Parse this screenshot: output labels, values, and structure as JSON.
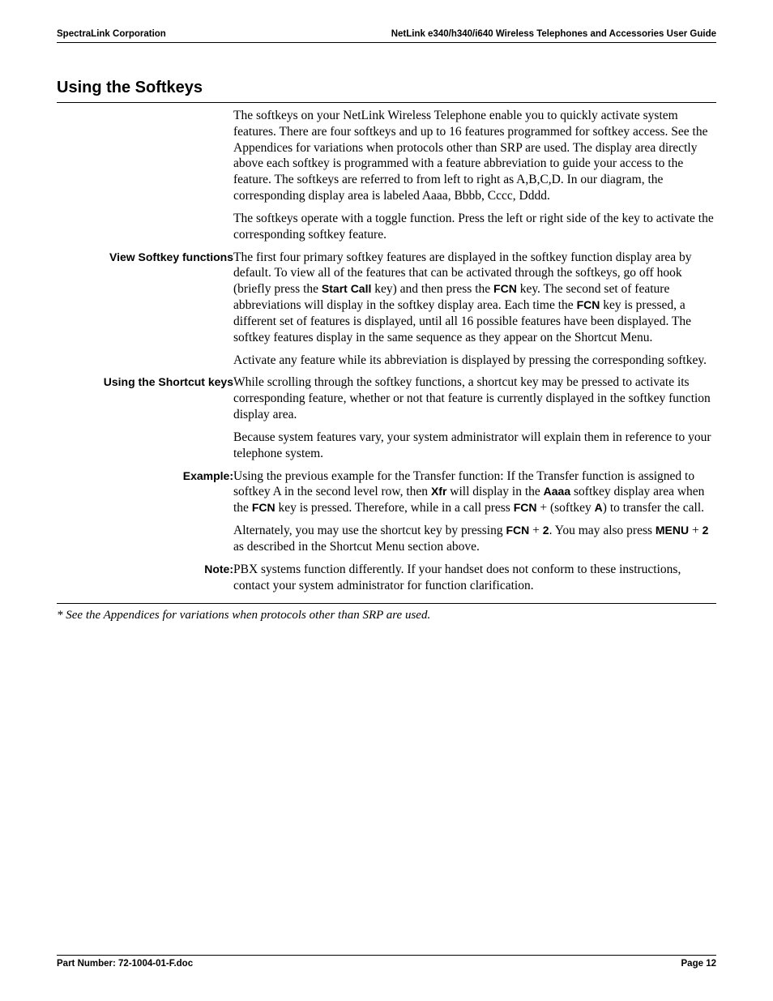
{
  "header": {
    "left": "SpectraLink Corporation",
    "right": "NetLink e340/h340/i640 Wireless Telephones and Accessories User Guide"
  },
  "section_title": "Using the Softkeys",
  "rows": [
    {
      "label": "",
      "paragraphs": [
        {
          "segments": [
            {
              "t": "The softkeys on your NetLink Wireless Telephone enable you to quickly activate system features. There are four softkeys and up to 16 features programmed for softkey access. See the Appendices for variations when protocols other than SRP are used. The display area directly above each softkey is programmed with a feature abbreviation to guide your access to the feature. The softkeys are referred to from left to right as A,B,C,D. In our diagram, the corresponding display area is labeled Aaaa, Bbbb, Cccc, Dddd."
            }
          ]
        },
        {
          "segments": [
            {
              "t": "The softkeys operate with a toggle function. Press the left or right side of the key to activate the corresponding softkey feature."
            }
          ]
        }
      ]
    },
    {
      "label": "View Softkey functions",
      "paragraphs": [
        {
          "segments": [
            {
              "t": "The first four primary softkey features are displayed in the softkey function display area by default. To view all of the features that can be activated through the softkeys, go off hook (briefly press the "
            },
            {
              "t": "Start Call",
              "b": true
            },
            {
              "t": " key) and then press the "
            },
            {
              "t": "FCN",
              "b": true
            },
            {
              "t": " key. The second set of feature abbreviations will display in the softkey display area. Each time the "
            },
            {
              "t": "FCN",
              "b": true
            },
            {
              "t": " key is pressed, a different set of features is displayed, until all 16 possible features have been displayed. The softkey features display in the same sequence as they appear on the Shortcut Menu."
            }
          ]
        },
        {
          "segments": [
            {
              "t": "Activate any feature while its abbreviation is displayed by pressing the corresponding softkey."
            }
          ]
        }
      ]
    },
    {
      "label": "Using the Shortcut keys",
      "paragraphs": [
        {
          "segments": [
            {
              "t": "While scrolling through the softkey functions, a shortcut key may be pressed to activate its corresponding feature, whether or not that feature is currently displayed in the softkey function display area."
            }
          ]
        },
        {
          "segments": [
            {
              "t": "Because system features vary, your system administrator will explain them in reference to your telephone system."
            }
          ]
        }
      ]
    },
    {
      "label": "Example:",
      "paragraphs": [
        {
          "segments": [
            {
              "t": "Using the previous example for the Transfer function: If the Transfer function is assigned to softkey A in the second level row, then "
            },
            {
              "t": "Xfr",
              "b": true
            },
            {
              "t": " will display in the "
            },
            {
              "t": "Aaaa",
              "b": true
            },
            {
              "t": " softkey display area when the "
            },
            {
              "t": "FCN",
              "b": true
            },
            {
              "t": " key is pressed. Therefore, while in a call press "
            },
            {
              "t": "FCN",
              "b": true
            },
            {
              "t": " + (softkey "
            },
            {
              "t": "A",
              "b": true
            },
            {
              "t": ") to transfer the call."
            }
          ]
        },
        {
          "segments": [
            {
              "t": "Alternately, you may use the shortcut key by pressing "
            },
            {
              "t": "FCN",
              "b": true
            },
            {
              "t": " + "
            },
            {
              "t": "2",
              "b": true
            },
            {
              "t": ". You may also press "
            },
            {
              "t": "MENU",
              "b": true
            },
            {
              "t": " + "
            },
            {
              "t": "2",
              "b": true
            },
            {
              "t": " as described in the Shortcut Menu section above."
            }
          ]
        }
      ]
    },
    {
      "label": "Note:",
      "paragraphs": [
        {
          "segments": [
            {
              "t": "PBX systems function differently. If your handset does not conform to these instructions, contact your system administrator for function clarification."
            }
          ]
        }
      ]
    }
  ],
  "footnote": "* See the Appendices for variations when protocols other than SRP are used.",
  "footer": {
    "left": "Part Number: 72-1004-01-F.doc",
    "right": "Page 12"
  }
}
